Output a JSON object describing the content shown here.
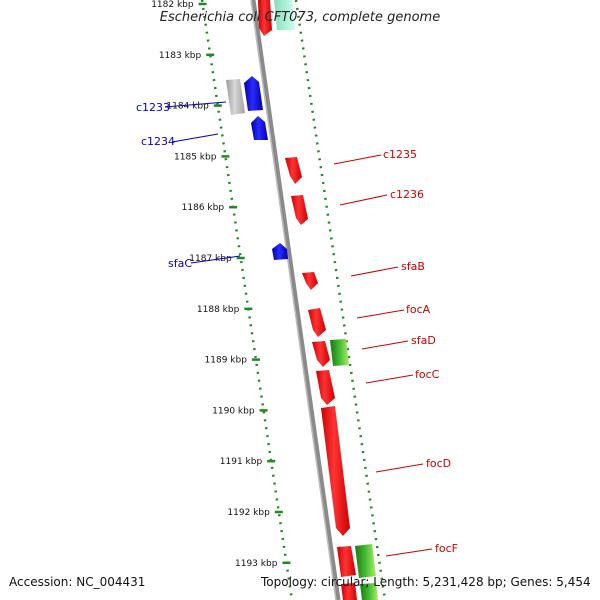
{
  "title": "Escherichia coli CFT073, complete genome",
  "ruler": {
    "ticks": [
      "1182 kbp",
      "1183 kbp",
      "1184 kbp",
      "1185 kbp",
      "1186 kbp",
      "1187 kbp",
      "1188 kbp",
      "1189 kbp",
      "1190 kbp",
      "1191 kbp",
      "1192 kbp",
      "1193 kbp"
    ]
  },
  "genes_left": [
    {
      "label": "c1233",
      "color": "#0000cc"
    },
    {
      "label": "c1234",
      "color": "#0000cc"
    },
    {
      "label": "sfaC",
      "color": "#0000cc"
    }
  ],
  "genes_right": [
    {
      "label": "c1235",
      "color": "#cc0000"
    },
    {
      "label": "c1236",
      "color": "#cc0000"
    },
    {
      "label": "sfaB",
      "color": "#cc0000"
    },
    {
      "label": "focA",
      "color": "#cc0000"
    },
    {
      "label": "sfaD",
      "color": "#cc0000"
    },
    {
      "label": "focC",
      "color": "#cc0000"
    },
    {
      "label": "focD",
      "color": "#cc0000"
    },
    {
      "label": "focF",
      "color": "#cc0000"
    }
  ],
  "colors": {
    "forward_gene": "#ff0000",
    "reverse_gene": "#0000ff",
    "grey_feature": "#b0b0b0",
    "green_feature": "#33aa22",
    "backbone": "#888888",
    "dotted_track": "#228822"
  },
  "footer": {
    "accession": "Accession: NC_004431",
    "summary": "Topology: circular; Length: 5,231,428 bp; Genes: 5,454"
  }
}
